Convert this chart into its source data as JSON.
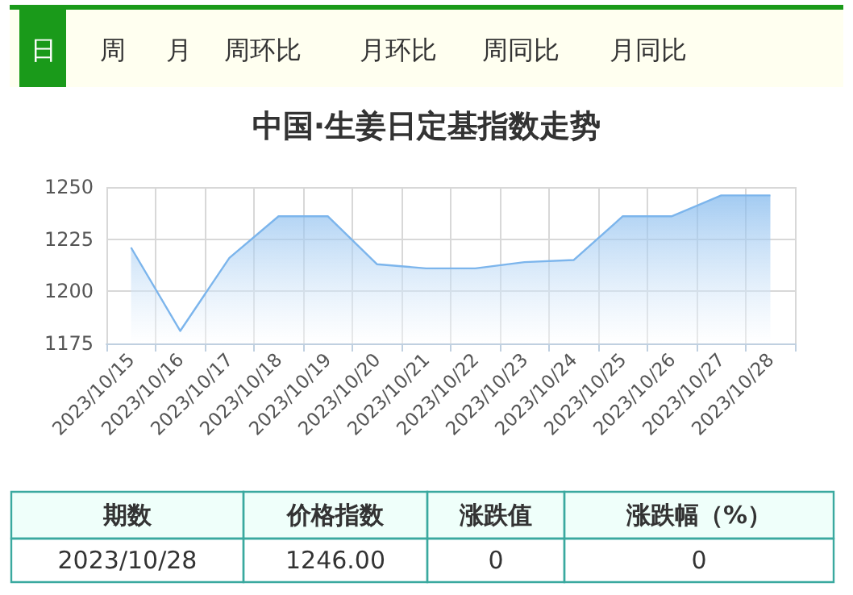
{
  "chart_data": {
    "type": "area",
    "title": "中国·生姜日定基指数走势",
    "categories": [
      "2023/10/15",
      "2023/10/16",
      "2023/10/17",
      "2023/10/18",
      "2023/10/19",
      "2023/10/20",
      "2023/10/21",
      "2023/10/22",
      "2023/10/23",
      "2023/10/24",
      "2023/10/25",
      "2023/10/26",
      "2023/10/27",
      "2023/10/28"
    ],
    "series": [
      {
        "color": "#7cb5ec",
        "values": [
          1221,
          1181,
          1216,
          1236,
          1236,
          1213,
          1211,
          1211,
          1214,
          1215,
          1236,
          1236,
          1246,
          1246
        ]
      }
    ],
    "ylim": [
      1175,
      1250
    ],
    "yticks": [
      1175,
      1200,
      1225,
      1250
    ],
    "grid": true,
    "marker": "none",
    "line_style": "solid",
    "annotations": [
      "日",
      "周",
      "月",
      "周环比",
      "月环比",
      "周同比",
      "月同比",
      "期数",
      "价格指数",
      "涨跌值",
      "涨跌幅（%）",
      "2023/10/28",
      "1246.00",
      "0",
      "0"
    ]
  }
}
